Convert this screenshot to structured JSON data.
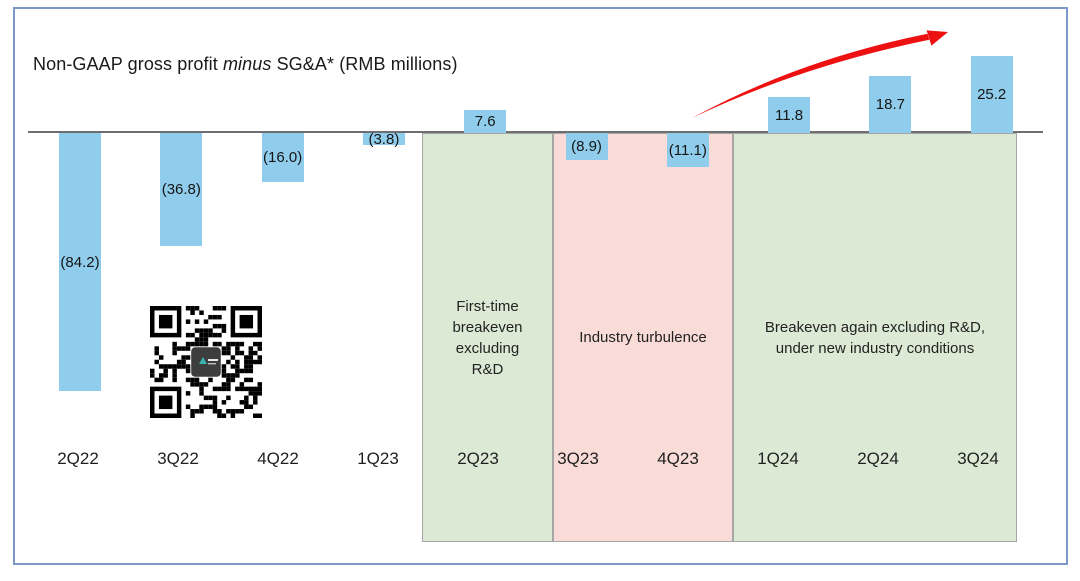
{
  "frame": {
    "border_color": "#7d97c8"
  },
  "title": {
    "prefix": "Non-GAAP gross profit ",
    "italic_word": "minus",
    "suffix": " SG&A* (RMB millions)"
  },
  "chart_data": {
    "type": "bar",
    "title": "Non-GAAP gross profit minus SG&A* (RMB millions)",
    "unit": "RMB millions",
    "categories": [
      "2Q22",
      "3Q22",
      "4Q22",
      "1Q23",
      "2Q23",
      "3Q23",
      "4Q23",
      "1Q24",
      "2Q24",
      "3Q24"
    ],
    "values": [
      -84.2,
      -36.8,
      -16.0,
      -3.8,
      7.6,
      -8.9,
      -11.1,
      11.8,
      18.7,
      25.2
    ],
    "value_labels": [
      "(84.2)",
      "(36.8)",
      "(16.0)",
      "(3.8)",
      "7.6",
      "(8.9)",
      "(11.1)",
      "11.8",
      "18.7",
      "25.2"
    ],
    "bar_color": "#90cdec",
    "baseline": 0,
    "negative_format": "parentheses",
    "grid": false,
    "legend": false,
    "regions": [
      {
        "label": "First-time\nbreakeven\nexcluding\nR&D",
        "quarters": [
          "2Q23"
        ],
        "color": "#dcead5"
      },
      {
        "label": "Industry turbulence",
        "quarters": [
          "3Q23",
          "4Q23"
        ],
        "color": "#f9dcd8"
      },
      {
        "label": "Breakeven again excluding R&D,\nunder new industry conditions",
        "quarters": [
          "1Q24",
          "2Q24",
          "3Q24"
        ],
        "color": "#dcead5"
      }
    ],
    "annotations": [
      {
        "type": "trend-arrow",
        "color": "#ee1111",
        "span_quarters": [
          "1Q24",
          "3Q24"
        ],
        "direction": "up-right"
      }
    ]
  },
  "qr_code": {
    "present": true,
    "center_logo": true
  }
}
